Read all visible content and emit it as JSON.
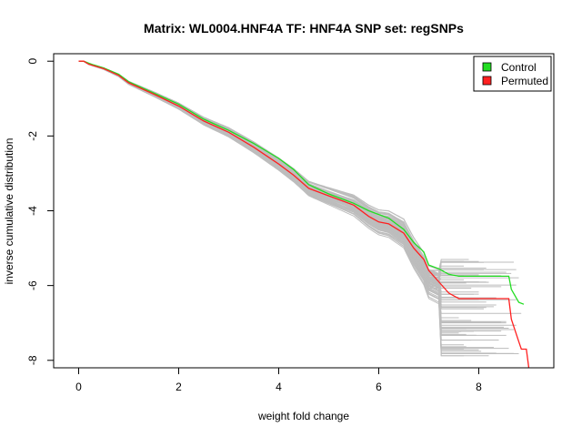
{
  "chart_data": {
    "type": "line",
    "title": "Matrix: WL0004.HNF4A TF: HNF4A SNP set: regSNPs",
    "xlabel": "weight fold change",
    "ylabel": "inverse cumulative distribution",
    "xlim": [
      -0.5,
      9.5
    ],
    "ylim": [
      -8.2,
      0.2
    ],
    "xticks": [
      0,
      2,
      4,
      6,
      8
    ],
    "yticks": [
      0,
      -2,
      -4,
      -6,
      -8
    ],
    "legend": {
      "position": "top-right",
      "entries": [
        {
          "name": "Control",
          "color": "#22dd22"
        },
        {
          "name": "Permuted",
          "color": "#ff2020"
        }
      ]
    },
    "series": [
      {
        "name": "Control",
        "color": "#22dd22",
        "x": [
          0.0,
          0.1,
          0.2,
          0.3,
          0.5,
          0.8,
          1.0,
          1.5,
          2.0,
          2.5,
          3.0,
          3.5,
          4.0,
          4.3,
          4.6,
          5.0,
          5.5,
          5.8,
          6.0,
          6.2,
          6.5,
          6.7,
          6.9,
          7.0,
          7.2,
          7.4,
          7.6,
          8.0,
          8.6,
          8.65,
          8.8,
          8.9
        ],
        "y": [
          0.0,
          0.0,
          -0.05,
          -0.1,
          -0.18,
          -0.35,
          -0.55,
          -0.85,
          -1.15,
          -1.55,
          -1.85,
          -2.2,
          -2.6,
          -2.9,
          -3.3,
          -3.55,
          -3.8,
          -4.0,
          -4.1,
          -4.2,
          -4.5,
          -4.85,
          -5.1,
          -5.45,
          -5.55,
          -5.7,
          -5.75,
          -5.75,
          -5.75,
          -6.1,
          -6.45,
          -6.5
        ]
      },
      {
        "name": "Permuted",
        "color": "#ff2020",
        "x": [
          0.0,
          0.1,
          0.2,
          0.3,
          0.5,
          0.8,
          1.0,
          1.5,
          2.0,
          2.5,
          3.0,
          3.5,
          4.0,
          4.3,
          4.6,
          5.0,
          5.5,
          5.8,
          6.0,
          6.2,
          6.5,
          6.7,
          6.9,
          7.0,
          7.2,
          7.4,
          7.6,
          8.0,
          8.6,
          8.65,
          8.8,
          8.85,
          8.95,
          9.0
        ],
        "y": [
          0.0,
          0.0,
          -0.08,
          -0.12,
          -0.2,
          -0.38,
          -0.58,
          -0.88,
          -1.2,
          -1.6,
          -1.9,
          -2.3,
          -2.75,
          -3.05,
          -3.4,
          -3.6,
          -3.85,
          -4.15,
          -4.3,
          -4.35,
          -4.6,
          -5.0,
          -5.3,
          -5.6,
          -5.9,
          -6.2,
          -6.35,
          -6.35,
          -6.35,
          -6.9,
          -7.5,
          -7.7,
          -7.7,
          -8.2
        ]
      }
    ]
  }
}
